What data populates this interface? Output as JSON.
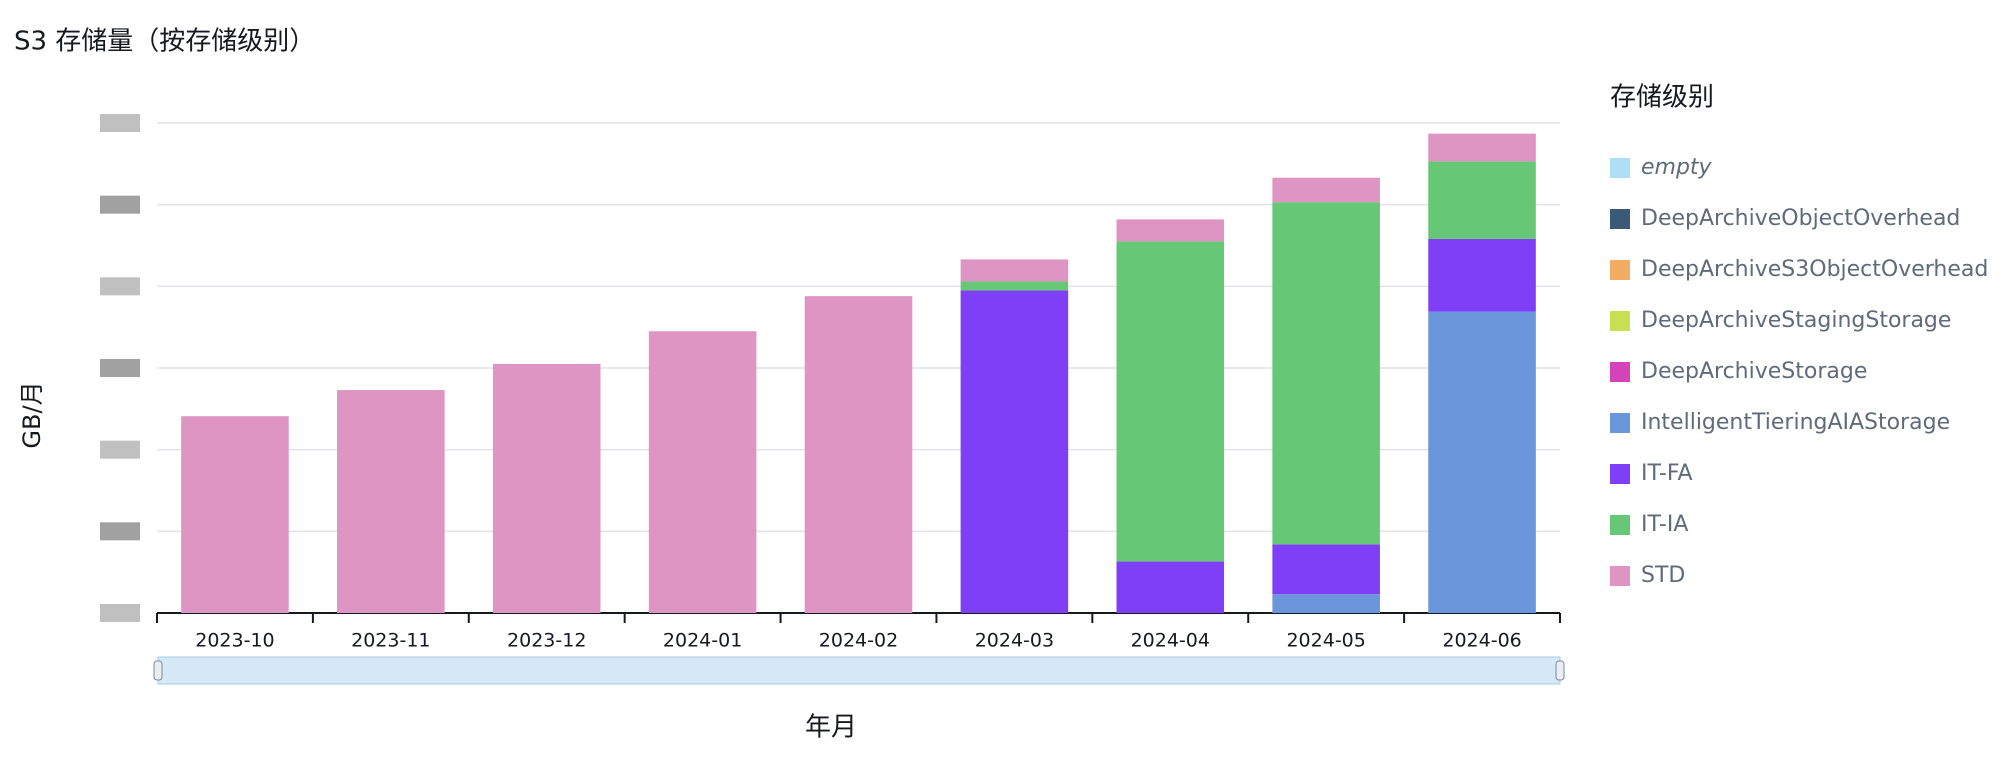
{
  "chart_data": {
    "type": "stacked_bar",
    "title": "S3 存储量（按存储级别）",
    "y_label": "GB/月",
    "x_label": "年月",
    "legend_title": "存储级别",
    "legend_position": "right",
    "categories": [
      "2023-10",
      "2023-11",
      "2023-12",
      "2024-01",
      "2024-02",
      "2024-03",
      "2024-04",
      "2024-05",
      "2024-06"
    ],
    "ylim": [
      0,
      6
    ],
    "yticks": [
      0,
      1,
      2,
      3,
      4,
      5,
      6
    ],
    "grid": true,
    "series": [
      {
        "name": "empty",
        "color": "#aedff5",
        "values": [
          0,
          0,
          0,
          0,
          0,
          0,
          0,
          0,
          0
        ]
      },
      {
        "name": "DeepArchiveObjectOverhead",
        "color": "#3b5a78",
        "values": [
          0,
          0,
          0,
          0,
          0,
          0,
          0,
          0,
          0
        ]
      },
      {
        "name": "DeepArchiveS3ObjectOverhead",
        "color": "#f0ad63",
        "values": [
          0,
          0,
          0,
          0,
          0,
          0,
          0,
          0,
          0
        ]
      },
      {
        "name": "DeepArchiveStagingStorage",
        "color": "#c8e052",
        "values": [
          0,
          0,
          0,
          0,
          0,
          0,
          0,
          0,
          0
        ]
      },
      {
        "name": "DeepArchiveStorage",
        "color": "#d444b8",
        "values": [
          0,
          0,
          0,
          0,
          0,
          0,
          0,
          0,
          0
        ]
      },
      {
        "name": "IntelligentTieringAIAStorage",
        "color": "#6b96dc",
        "values": [
          0,
          0,
          0,
          0,
          0,
          0,
          0,
          0.23,
          3.69
        ]
      },
      {
        "name": "IT-FA",
        "color": "#7f3ff7",
        "values": [
          0,
          0,
          0,
          0,
          0,
          3.95,
          0.63,
          0.61,
          0.89
        ]
      },
      {
        "name": "IT-IA",
        "color": "#66c877",
        "values": [
          0,
          0,
          0,
          0,
          0,
          0.11,
          3.92,
          4.19,
          0.95
        ]
      },
      {
        "name": "STD",
        "color": "#df95c4",
        "values": [
          2.41,
          2.73,
          3.05,
          3.45,
          3.88,
          0.27,
          0.27,
          0.3,
          0.34
        ]
      }
    ]
  }
}
